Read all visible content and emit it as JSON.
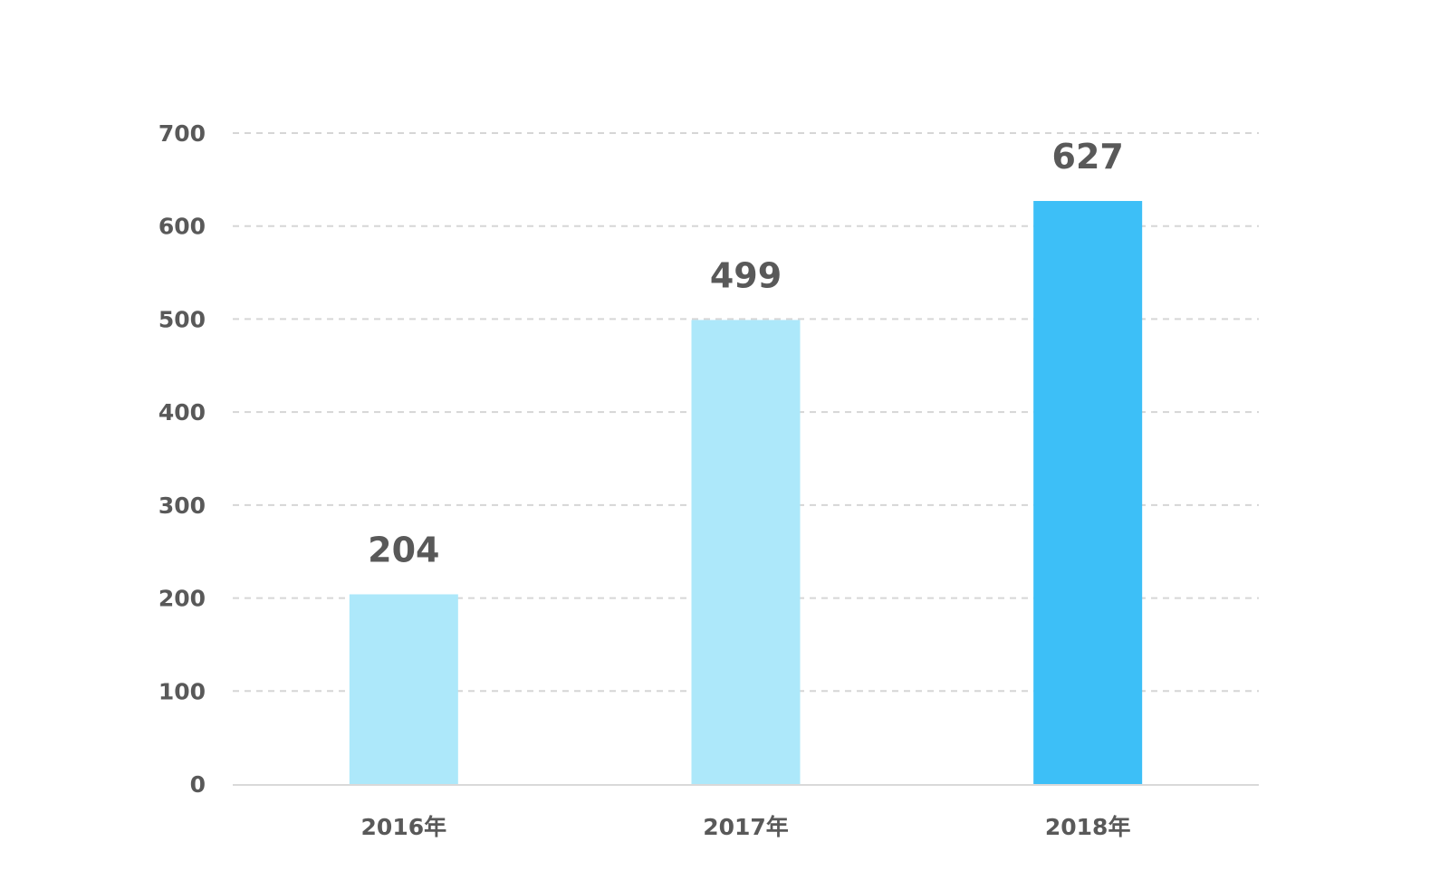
{
  "chart_data": {
    "type": "bar",
    "categories": [
      "2016年",
      "2017年",
      "2018年"
    ],
    "values": [
      204,
      499,
      627
    ],
    "data_labels": [
      "204",
      "499",
      "627"
    ],
    "bar_colors": [
      "#ade8fa",
      "#ade8fa",
      "#3dbff7"
    ],
    "ylim": [
      0,
      700
    ],
    "yticks": [
      0,
      100,
      200,
      300,
      400,
      500,
      600,
      700
    ],
    "title": "",
    "xlabel": "",
    "ylabel": "",
    "grid": true,
    "legend": "none"
  }
}
